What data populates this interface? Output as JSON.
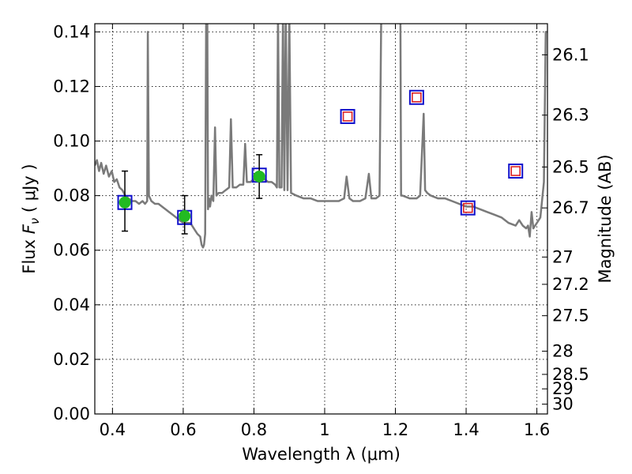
{
  "chart_data": {
    "type": "scatter",
    "xlabel": "Wavelength  λ (μm)",
    "ylabel": "Flux  F_ν  ( μJy )",
    "ylabel_parts": {
      "prefix": "Flux  ",
      "symbol": "F",
      "subscript": "ν",
      "suffix": "  ( μJy )"
    },
    "y2label": "Magnitude (AB)",
    "xlim": [
      0.35,
      1.63
    ],
    "ylim": [
      0.0,
      0.143
    ],
    "grid": true,
    "x_ticks": [
      {
        "value": 0.4,
        "label": "0.4"
      },
      {
        "value": 0.6,
        "label": "0.6"
      },
      {
        "value": 0.8,
        "label": "0.8"
      },
      {
        "value": 1.0,
        "label": "1"
      },
      {
        "value": 1.2,
        "label": "1.2"
      },
      {
        "value": 1.4,
        "label": "1.4"
      },
      {
        "value": 1.6,
        "label": "1.6"
      }
    ],
    "y_ticks": [
      {
        "value": 0.0,
        "label": "0.00"
      },
      {
        "value": 0.02,
        "label": "0.02"
      },
      {
        "value": 0.04,
        "label": "0.04"
      },
      {
        "value": 0.06,
        "label": "0.06"
      },
      {
        "value": 0.08,
        "label": "0.08"
      },
      {
        "value": 0.1,
        "label": "0.10"
      },
      {
        "value": 0.12,
        "label": "0.12"
      },
      {
        "value": 0.14,
        "label": "0.14"
      }
    ],
    "y2_ticks": [
      {
        "flux": 0.1316,
        "label": "26.1"
      },
      {
        "flux": 0.1095,
        "label": "26.3"
      },
      {
        "flux": 0.0905,
        "label": "26.5"
      },
      {
        "flux": 0.0755,
        "label": "26.7"
      },
      {
        "flux": 0.0575,
        "label": "27"
      },
      {
        "flux": 0.0475,
        "label": "27.2"
      },
      {
        "flux": 0.036,
        "label": "27.5"
      },
      {
        "flux": 0.023,
        "label": "28"
      },
      {
        "flux": 0.0145,
        "label": "28.5"
      },
      {
        "flux": 0.0092,
        "label": "29"
      },
      {
        "flux": 0.0036,
        "label": "30"
      }
    ],
    "series": [
      {
        "kind": "line",
        "color": "#7a7a7a",
        "points": [
          [
            0.35,
            0.091
          ],
          [
            0.356,
            0.093
          ],
          [
            0.362,
            0.089
          ],
          [
            0.368,
            0.092
          ],
          [
            0.375,
            0.088
          ],
          [
            0.382,
            0.091
          ],
          [
            0.39,
            0.087
          ],
          [
            0.398,
            0.089
          ],
          [
            0.405,
            0.085
          ],
          [
            0.412,
            0.086
          ],
          [
            0.42,
            0.083
          ],
          [
            0.428,
            0.082
          ],
          [
            0.436,
            0.08
          ],
          [
            0.445,
            0.079
          ],
          [
            0.455,
            0.078
          ],
          [
            0.465,
            0.078
          ],
          [
            0.475,
            0.077
          ],
          [
            0.485,
            0.078
          ],
          [
            0.492,
            0.077
          ],
          [
            0.498,
            0.078
          ],
          [
            0.5,
            0.14
          ],
          [
            0.503,
            0.08
          ],
          [
            0.51,
            0.078
          ],
          [
            0.52,
            0.077
          ],
          [
            0.53,
            0.077
          ],
          [
            0.54,
            0.076
          ],
          [
            0.55,
            0.075
          ],
          [
            0.56,
            0.074
          ],
          [
            0.57,
            0.073
          ],
          [
            0.58,
            0.072
          ],
          [
            0.59,
            0.071
          ],
          [
            0.6,
            0.07
          ],
          [
            0.61,
            0.07
          ],
          [
            0.62,
            0.07
          ],
          [
            0.63,
            0.068
          ],
          [
            0.64,
            0.066
          ],
          [
            0.648,
            0.065
          ],
          [
            0.652,
            0.062
          ],
          [
            0.656,
            0.061
          ],
          [
            0.659,
            0.062
          ],
          [
            0.662,
            0.066
          ],
          [
            0.665,
            0.147
          ],
          [
            0.668,
            0.147
          ],
          [
            0.67,
            0.075
          ],
          [
            0.673,
            0.079
          ],
          [
            0.676,
            0.076
          ],
          [
            0.68,
            0.08
          ],
          [
            0.685,
            0.078
          ],
          [
            0.69,
            0.105
          ],
          [
            0.694,
            0.08
          ],
          [
            0.7,
            0.081
          ],
          [
            0.71,
            0.081
          ],
          [
            0.72,
            0.082
          ],
          [
            0.73,
            0.083
          ],
          [
            0.735,
            0.108
          ],
          [
            0.74,
            0.083
          ],
          [
            0.75,
            0.083
          ],
          [
            0.76,
            0.084
          ],
          [
            0.77,
            0.084
          ],
          [
            0.775,
            0.099
          ],
          [
            0.78,
            0.085
          ],
          [
            0.79,
            0.085
          ],
          [
            0.8,
            0.086
          ],
          [
            0.81,
            0.086
          ],
          [
            0.82,
            0.087
          ],
          [
            0.83,
            0.086
          ],
          [
            0.84,
            0.085
          ],
          [
            0.85,
            0.085
          ],
          [
            0.86,
            0.084
          ],
          [
            0.865,
            0.083
          ],
          [
            0.868,
            0.147
          ],
          [
            0.872,
            0.083
          ],
          [
            0.878,
            0.083
          ],
          [
            0.882,
            0.147
          ],
          [
            0.886,
            0.082
          ],
          [
            0.89,
            0.147
          ],
          [
            0.895,
            0.082
          ],
          [
            0.9,
            0.147
          ],
          [
            0.905,
            0.081
          ],
          [
            0.92,
            0.08
          ],
          [
            0.94,
            0.079
          ],
          [
            0.96,
            0.079
          ],
          [
            0.98,
            0.078
          ],
          [
            1.0,
            0.078
          ],
          [
            1.02,
            0.078
          ],
          [
            1.04,
            0.078
          ],
          [
            1.055,
            0.079
          ],
          [
            1.062,
            0.087
          ],
          [
            1.07,
            0.079
          ],
          [
            1.08,
            0.078
          ],
          [
            1.1,
            0.078
          ],
          [
            1.115,
            0.079
          ],
          [
            1.125,
            0.088
          ],
          [
            1.132,
            0.079
          ],
          [
            1.145,
            0.079
          ],
          [
            1.155,
            0.08
          ],
          [
            1.16,
            0.147
          ],
          [
            1.163,
            0.147
          ],
          [
            1.166,
            0.15
          ],
          [
            1.214,
            0.15
          ],
          [
            1.216,
            0.08
          ],
          [
            1.22,
            0.08
          ],
          [
            1.24,
            0.079
          ],
          [
            1.26,
            0.079
          ],
          [
            1.27,
            0.08
          ],
          [
            1.28,
            0.11
          ],
          [
            1.284,
            0.082
          ],
          [
            1.29,
            0.081
          ],
          [
            1.3,
            0.08
          ],
          [
            1.32,
            0.079
          ],
          [
            1.34,
            0.079
          ],
          [
            1.36,
            0.078
          ],
          [
            1.38,
            0.077
          ],
          [
            1.4,
            0.076
          ],
          [
            1.42,
            0.076
          ],
          [
            1.44,
            0.075
          ],
          [
            1.46,
            0.074
          ],
          [
            1.48,
            0.073
          ],
          [
            1.5,
            0.072
          ],
          [
            1.52,
            0.07
          ],
          [
            1.54,
            0.069
          ],
          [
            1.55,
            0.071
          ],
          [
            1.56,
            0.069
          ],
          [
            1.57,
            0.068
          ],
          [
            1.575,
            0.069
          ],
          [
            1.58,
            0.065
          ],
          [
            1.585,
            0.074
          ],
          [
            1.59,
            0.068
          ],
          [
            1.6,
            0.07
          ],
          [
            1.61,
            0.072
          ],
          [
            1.62,
            0.085
          ],
          [
            1.625,
            0.14
          ],
          [
            1.63,
            0.14
          ]
        ]
      },
      {
        "kind": "squares",
        "edgecolor": "#1111cc",
        "points": [
          [
            0.435,
            0.0775
          ],
          [
            0.604,
            0.072
          ],
          [
            0.815,
            0.0875
          ],
          [
            1.065,
            0.109
          ],
          [
            1.26,
            0.116
          ],
          [
            1.405,
            0.0755
          ],
          [
            1.54,
            0.089
          ]
        ]
      },
      {
        "kind": "squares",
        "edgecolor": "#dd2222",
        "points": [
          [
            1.065,
            0.109
          ],
          [
            1.26,
            0.116
          ],
          [
            1.405,
            0.0755
          ],
          [
            1.54,
            0.089
          ]
        ]
      },
      {
        "kind": "points",
        "color": "#22bb22",
        "points": [
          {
            "x": 0.435,
            "y": 0.0775,
            "err": [
              0.067,
              0.089
            ]
          },
          {
            "x": 0.604,
            "y": 0.0725,
            "err": [
              0.066,
              0.08
            ]
          },
          {
            "x": 0.815,
            "y": 0.087,
            "err": [
              0.079,
              0.095
            ]
          }
        ]
      }
    ]
  }
}
